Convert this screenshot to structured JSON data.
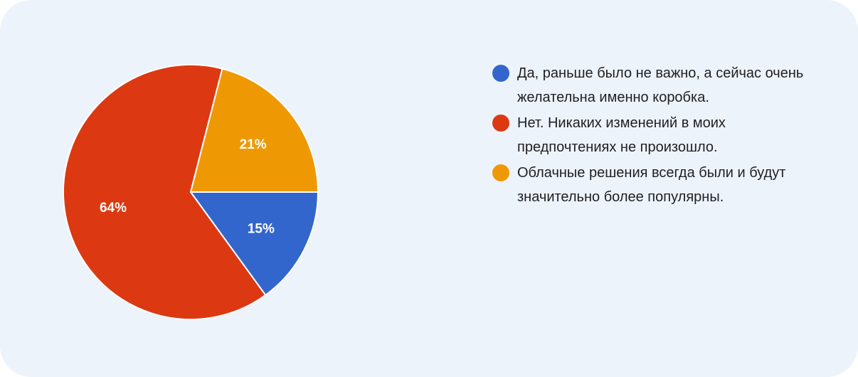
{
  "chart_data": {
    "type": "pie",
    "title": "",
    "categories": [
      "Да, раньше было не важно, а сейчас очень желательна именно коробка.",
      "Нет. Никаких изменений в моих предпочтениях не произошло.",
      "Облачные решения всегда были и будут значительно более популярны."
    ],
    "values": [
      15,
      64,
      21
    ],
    "unit": "%",
    "colors": [
      "#3366cc",
      "#dc3912",
      "#ee9904"
    ],
    "slice_labels": [
      "15%",
      "64%",
      "21%"
    ],
    "legend_position": "right"
  },
  "legend": {
    "items": [
      {
        "label": "Да, раньше было не важно, а сейчас очень желательна именно коробка.",
        "color": "#3366cc"
      },
      {
        "label": "Нет. Никаких изменений в моих предпочтениях не произошло.",
        "color": "#dc3912"
      },
      {
        "label": "Облачные решения всегда были и будут значительно более популярны.",
        "color": "#ee9904"
      }
    ]
  },
  "colors": {
    "background": "#edf3fa",
    "text": "#202124"
  }
}
